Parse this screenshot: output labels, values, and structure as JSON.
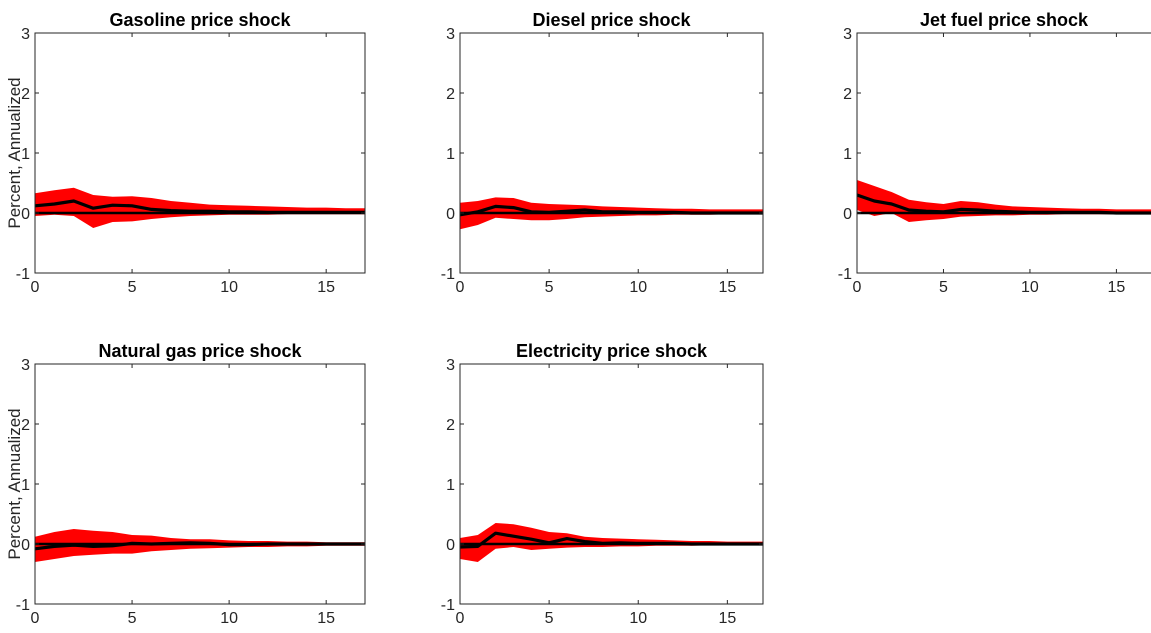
{
  "colors": {
    "band": "#ff0000",
    "line": "#000000",
    "zero": "#000000"
  },
  "chart_data": [
    {
      "type": "area",
      "title": "Gasoline price shock",
      "ylabel": "Percent, Annualized",
      "xlim": [
        0,
        17
      ],
      "ylim": [
        -1,
        3
      ],
      "xticks": [
        0,
        5,
        10,
        15
      ],
      "yticks": [
        -1,
        0,
        1,
        2,
        3
      ],
      "x": [
        0,
        1,
        2,
        3,
        4,
        5,
        6,
        7,
        8,
        9,
        10,
        11,
        12,
        13,
        14,
        15,
        16,
        17
      ],
      "median": [
        0.12,
        0.15,
        0.2,
        0.08,
        0.13,
        0.12,
        0.06,
        0.04,
        0.03,
        0.03,
        0.02,
        0.02,
        0.01,
        0.01,
        0.01,
        0.01,
        0.01,
        0.01
      ],
      "upper": [
        0.33,
        0.38,
        0.42,
        0.3,
        0.27,
        0.28,
        0.25,
        0.2,
        0.17,
        0.14,
        0.13,
        0.12,
        0.11,
        0.1,
        0.09,
        0.09,
        0.08,
        0.08
      ],
      "lower": [
        -0.05,
        -0.03,
        -0.05,
        -0.25,
        -0.15,
        -0.14,
        -0.1,
        -0.07,
        -0.05,
        -0.04,
        -0.03,
        -0.03,
        -0.03,
        -0.02,
        -0.02,
        -0.02,
        -0.02,
        -0.02
      ]
    },
    {
      "type": "area",
      "title": "Diesel price shock",
      "ylabel": "",
      "xlim": [
        0,
        17
      ],
      "ylim": [
        -1,
        3
      ],
      "xticks": [
        0,
        5,
        10,
        15
      ],
      "yticks": [
        -1,
        0,
        1,
        2,
        3
      ],
      "x": [
        0,
        1,
        2,
        3,
        4,
        5,
        6,
        7,
        8,
        9,
        10,
        11,
        12,
        13,
        14,
        15,
        16,
        17
      ],
      "median": [
        -0.03,
        0.02,
        0.11,
        0.09,
        0.02,
        0.01,
        0.03,
        0.05,
        0.02,
        0.02,
        0.01,
        0.01,
        0.01,
        0.0,
        0.0,
        0.0,
        0.0,
        0.0
      ],
      "upper": [
        0.17,
        0.2,
        0.26,
        0.25,
        0.17,
        0.15,
        0.14,
        0.13,
        0.11,
        0.1,
        0.09,
        0.08,
        0.07,
        0.07,
        0.06,
        0.06,
        0.06,
        0.06
      ],
      "lower": [
        -0.27,
        -0.2,
        -0.08,
        -0.1,
        -0.12,
        -0.12,
        -0.1,
        -0.07,
        -0.06,
        -0.05,
        -0.04,
        -0.04,
        -0.03,
        -0.03,
        -0.03,
        -0.02,
        -0.02,
        -0.02
      ]
    },
    {
      "type": "area",
      "title": "Jet fuel price shock",
      "ylabel": "",
      "xlim": [
        0,
        17
      ],
      "ylim": [
        -1,
        3
      ],
      "xticks": [
        0,
        5,
        10,
        15
      ],
      "yticks": [
        -1,
        0,
        1,
        2,
        3
      ],
      "x": [
        0,
        1,
        2,
        3,
        4,
        5,
        6,
        7,
        8,
        9,
        10,
        11,
        12,
        13,
        14,
        15,
        16,
        17
      ],
      "median": [
        0.3,
        0.2,
        0.15,
        0.05,
        0.03,
        0.02,
        0.06,
        0.05,
        0.03,
        0.02,
        0.01,
        0.01,
        0.01,
        0.01,
        0.01,
        0.0,
        0.0,
        0.0
      ],
      "upper": [
        0.55,
        0.45,
        0.35,
        0.22,
        0.18,
        0.15,
        0.2,
        0.18,
        0.14,
        0.11,
        0.1,
        0.09,
        0.08,
        0.07,
        0.07,
        0.06,
        0.06,
        0.06
      ],
      "lower": [
        0.05,
        -0.05,
        0.0,
        -0.15,
        -0.12,
        -0.1,
        -0.06,
        -0.05,
        -0.04,
        -0.04,
        -0.03,
        -0.03,
        -0.02,
        -0.02,
        -0.02,
        -0.02,
        -0.02,
        -0.02
      ]
    },
    {
      "type": "area",
      "title": "Natural gas price shock",
      "ylabel": "Percent, Annualized",
      "xlim": [
        0,
        17
      ],
      "ylim": [
        -1,
        3
      ],
      "xticks": [
        0,
        5,
        10,
        15
      ],
      "yticks": [
        -1,
        0,
        1,
        2,
        3
      ],
      "x": [
        0,
        1,
        2,
        3,
        4,
        5,
        6,
        7,
        8,
        9,
        10,
        11,
        12,
        13,
        14,
        15,
        16,
        17
      ],
      "median": [
        -0.08,
        -0.04,
        -0.02,
        -0.04,
        -0.03,
        0.01,
        0.0,
        0.01,
        0.02,
        0.01,
        -0.01,
        -0.01,
        0.0,
        0.0,
        0.0,
        0.0,
        0.0,
        0.0
      ],
      "upper": [
        0.12,
        0.2,
        0.25,
        0.22,
        0.2,
        0.15,
        0.14,
        0.1,
        0.08,
        0.08,
        0.06,
        0.05,
        0.05,
        0.04,
        0.04,
        0.03,
        0.03,
        0.03
      ],
      "lower": [
        -0.3,
        -0.25,
        -0.2,
        -0.18,
        -0.16,
        -0.16,
        -0.12,
        -0.1,
        -0.08,
        -0.07,
        -0.06,
        -0.05,
        -0.05,
        -0.04,
        -0.04,
        -0.03,
        -0.03,
        -0.03
      ]
    },
    {
      "type": "area",
      "title": "Electricity price shock",
      "ylabel": "",
      "xlim": [
        0,
        17
      ],
      "ylim": [
        -1,
        3
      ],
      "xticks": [
        0,
        5,
        10,
        15
      ],
      "yticks": [
        -1,
        0,
        1,
        2,
        3
      ],
      "x": [
        0,
        1,
        2,
        3,
        4,
        5,
        6,
        7,
        8,
        9,
        10,
        11,
        12,
        13,
        14,
        15,
        16,
        17
      ],
      "median": [
        -0.05,
        -0.04,
        0.18,
        0.13,
        0.08,
        0.02,
        0.09,
        0.04,
        0.01,
        0.02,
        0.01,
        0.01,
        0.01,
        0.0,
        0.0,
        0.0,
        0.0,
        0.0
      ],
      "upper": [
        0.1,
        0.15,
        0.35,
        0.33,
        0.27,
        0.2,
        0.18,
        0.12,
        0.1,
        0.09,
        0.08,
        0.07,
        0.06,
        0.05,
        0.05,
        0.04,
        0.04,
        0.04
      ],
      "lower": [
        -0.25,
        -0.3,
        -0.08,
        -0.05,
        -0.1,
        -0.08,
        -0.06,
        -0.05,
        -0.05,
        -0.04,
        -0.04,
        -0.03,
        -0.03,
        -0.03,
        -0.02,
        -0.02,
        -0.02,
        -0.02
      ]
    }
  ]
}
